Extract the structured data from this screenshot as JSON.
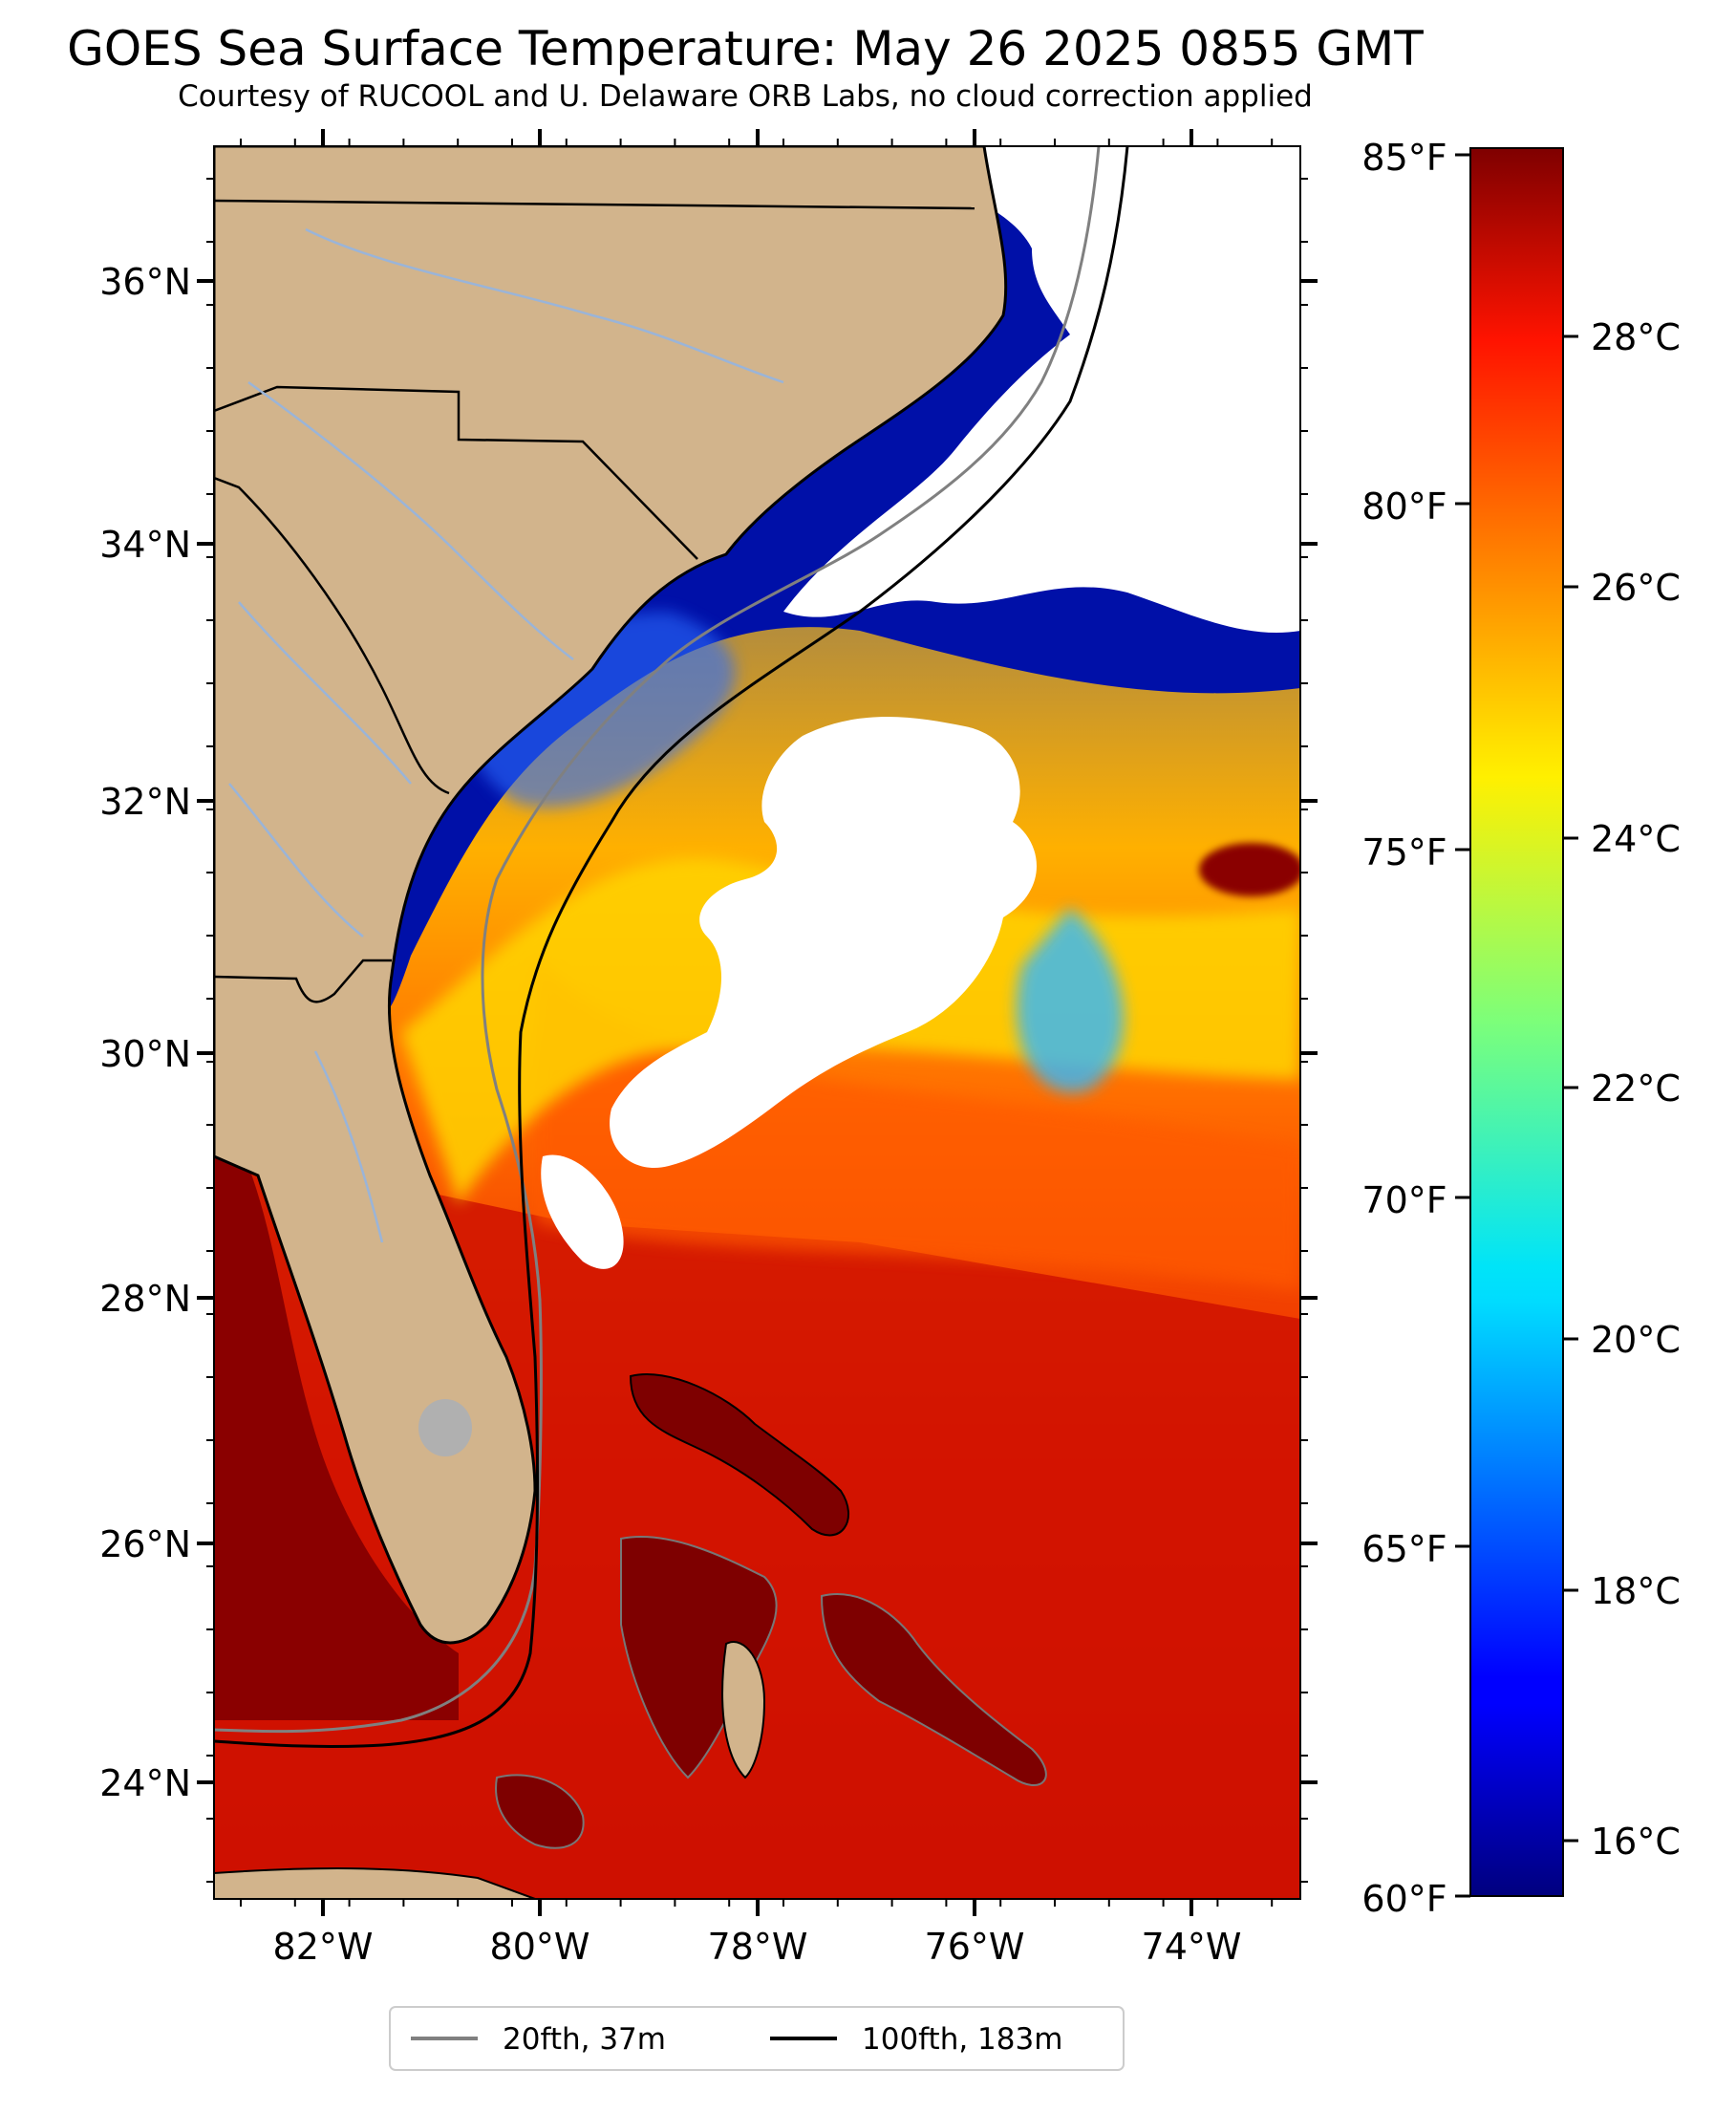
{
  "title": "GOES Sea Surface Temperature: May 26 2025 0855 GMT",
  "subtitle": "Courtesy of RUCOOL and U. Delaware ORB Labs, no cloud correction applied",
  "map": {
    "lon_range": [
      -83,
      -73
    ],
    "lat_range": [
      23.1,
      37
    ],
    "lat_labels": [
      "36°N",
      "34°N",
      "32°N",
      "30°N",
      "28°N",
      "26°N",
      "24°N"
    ],
    "lon_labels": [
      "82°W",
      "80°W",
      "78°W",
      "76°W",
      "74°W"
    ],
    "land_color": "#d2b48c",
    "cloud_color": "#ffffff",
    "river_color": "#9ab4d8"
  },
  "colorbar": {
    "colormap": "jet",
    "celsius_range": [
      15.56,
      29.44
    ],
    "celsius_labels": [
      "28°C",
      "26°C",
      "24°C",
      "22°C",
      "20°C",
      "18°C",
      "16°C"
    ],
    "fahrenheit_labels": [
      "85°F",
      "80°F",
      "75°F",
      "70°F",
      "65°F",
      "60°F"
    ]
  },
  "legend": {
    "items": [
      {
        "label": "20fth, 37m",
        "color": "#808080"
      },
      {
        "label": "100fth, 183m",
        "color": "#000000"
      }
    ]
  }
}
